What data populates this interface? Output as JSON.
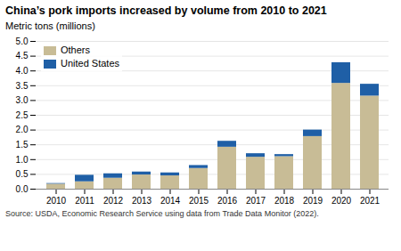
{
  "chart_data": {
    "type": "bar",
    "title": "China’s pork imports increased by volume from 2010 to 2021",
    "ylabel": "Metric tons (millions)",
    "categories": [
      "2010",
      "2011",
      "2012",
      "2013",
      "2014",
      "2015",
      "2016",
      "2017",
      "2018",
      "2019",
      "2020",
      "2021"
    ],
    "series": [
      {
        "name": "Others",
        "color": "#c8bc96",
        "values": [
          0.17,
          0.25,
          0.37,
          0.48,
          0.45,
          0.7,
          1.42,
          1.08,
          1.1,
          1.78,
          3.58,
          3.15
        ]
      },
      {
        "name": "United States",
        "color": "#1f5fa6",
        "values": [
          0.02,
          0.22,
          0.15,
          0.1,
          0.1,
          0.1,
          0.2,
          0.12,
          0.07,
          0.22,
          0.7,
          0.4
        ]
      }
    ],
    "stacked": true,
    "ylim": [
      0,
      5.0
    ],
    "yticks": [
      {
        "value": 0,
        "label": "0.0"
      },
      0.5,
      {
        "value": 1,
        "label": "1.0"
      },
      1.5,
      {
        "value": 2,
        "label": "2.0"
      },
      2.5,
      {
        "value": 3,
        "label": "3.0"
      },
      3.5,
      {
        "value": 4,
        "label": "4.0"
      },
      4.5,
      {
        "value": 5,
        "label": "5.0"
      }
    ],
    "grid": true,
    "legend": "upper left",
    "annotations": [
      "Source: USDA, Economic Research Service using data from Trade Data Monitor (2022)."
    ]
  }
}
